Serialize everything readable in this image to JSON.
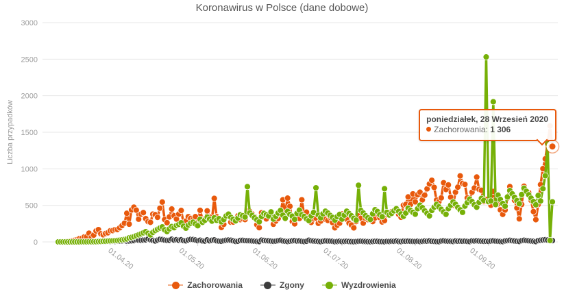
{
  "chart_data": {
    "type": "line",
    "title": "Koronawirus w Polsce (dane dobowe)",
    "ylabel": "Liczba przypadków",
    "ylim": [
      0,
      3000
    ],
    "yticks": [
      0,
      500,
      1000,
      1500,
      2000,
      2500,
      3000
    ],
    "grid": "horizontal",
    "legend_position": "bottom",
    "x_start_date": "2020-03-03",
    "x_interval": "1 day",
    "n_points": 210,
    "xticks": [
      {
        "label": "01.04.20",
        "index": 29
      },
      {
        "label": "01.05.20",
        "index": 59
      },
      {
        "label": "01.06.20",
        "index": 90
      },
      {
        "label": "01.07.20",
        "index": 120
      },
      {
        "label": "01.08.20",
        "index": 151
      },
      {
        "label": "01.09.20",
        "index": 182
      }
    ],
    "series": [
      {
        "name": "Zachorowania",
        "color": "#e8590c",
        "values": [
          1,
          1,
          3,
          5,
          8,
          11,
          16,
          22,
          31,
          46,
          49,
          68,
          70,
          119,
          61,
          93,
          150,
          168,
          111,
          98,
          115,
          125,
          152,
          155,
          168,
          170,
          193,
          224,
          256,
          392,
          243,
          437,
          475,
          435,
          311,
          380,
          401,
          318,
          278,
          268,
          380,
          373,
          336,
          461,
          545,
          306,
          263,
          342,
          450,
          358,
          313,
          381,
          430,
          255,
          285,
          345,
          321,
          305,
          346,
          245,
          432,
          306,
          311,
          425,
          340,
          307,
          595,
          345,
          296,
          198,
          240,
          364,
          351,
          270,
          272,
          292,
          356,
          305,
          316,
          306,
          417,
          416,
          382,
          344,
          235,
          195,
          399,
          336,
          315,
          363,
          396,
          242,
          285,
          320,
          380,
          576,
          395,
          599,
          487,
          280,
          247,
          348,
          321,
          576,
          375,
          407,
          317,
          267,
          314,
          326,
          255,
          285,
          380,
          310,
          294,
          337,
          265,
          193,
          228,
          256,
          382,
          371,
          311,
          257,
          231,
          192,
          279,
          355,
          324,
          257,
          318,
          305,
          336,
          279,
          328,
          380,
          332,
          273,
          292,
          399,
          361,
          412,
          426,
          458,
          376,
          337,
          502,
          512,
          615,
          512,
          657,
          548,
          645,
          680,
          575,
          640,
          726,
          793,
          843,
          746,
          572,
          551,
          602,
          809,
          717,
          780,
          612,
          501,
          680,
          749,
          903,
          800,
          787,
          601,
          571,
          680,
          737,
          887,
          719,
          706,
          552,
          580,
          550,
          502,
          691,
          571,
          519,
          438,
          377,
          436,
          601,
          757,
          649,
          570,
          464,
          316,
          512,
          762,
          691,
          673,
          569,
          415,
          305,
          512,
          784,
          1002,
          1136,
          1350,
          1587,
          1306
        ]
      },
      {
        "name": "Zgony",
        "color": "#3c3c3c",
        "values": [
          0,
          0,
          0,
          0,
          0,
          0,
          0,
          0,
          1,
          1,
          2,
          3,
          4,
          5,
          4,
          2,
          5,
          5,
          2,
          4,
          2,
          8,
          6,
          9,
          7,
          12,
          10,
          14,
          18,
          11,
          12,
          15,
          18,
          30,
          24,
          22,
          25,
          28,
          40,
          29,
          21,
          13,
          24,
          35,
          32,
          25,
          21,
          23,
          36,
          25,
          30,
          23,
          29,
          18,
          15,
          26,
          34,
          32,
          26,
          17,
          23,
          14,
          12,
          27,
          16,
          22,
          27,
          15,
          11,
          9,
          17,
          22,
          25,
          23,
          16,
          7,
          9,
          20,
          21,
          18,
          17,
          16,
          13,
          10,
          7,
          5,
          24,
          20,
          17,
          15,
          12,
          8,
          11,
          17,
          21,
          13,
          9,
          6,
          10,
          15,
          18,
          12,
          14,
          8,
          5,
          9,
          23,
          16,
          12,
          10,
          7,
          4,
          9,
          14,
          12,
          11,
          8,
          3,
          6,
          9,
          5,
          7,
          9,
          6,
          4,
          2,
          5,
          8,
          10,
          7,
          6,
          4,
          3,
          6,
          9,
          8,
          5,
          4,
          2,
          7,
          6,
          9,
          8,
          12,
          6,
          5,
          10,
          9,
          11,
          8,
          7,
          6,
          9,
          5,
          8,
          12,
          10,
          14,
          9,
          7,
          5,
          4,
          12,
          15,
          11,
          9,
          8,
          6,
          13,
          10,
          12,
          9,
          11,
          7,
          5,
          14,
          13,
          16,
          12,
          10,
          8,
          9,
          7,
          12,
          15,
          11,
          9,
          6,
          5,
          14,
          18,
          21,
          17,
          13,
          10,
          6,
          17,
          22,
          19,
          16,
          12,
          8,
          5,
          18,
          23,
          26,
          29,
          25,
          21,
          18
        ]
      },
      {
        "name": "Wyzdrowienia",
        "color": "#76b007",
        "values": [
          0,
          0,
          0,
          0,
          0,
          0,
          0,
          0,
          0,
          0,
          1,
          1,
          1,
          2,
          2,
          3,
          3,
          5,
          6,
          8,
          10,
          12,
          14,
          16,
          18,
          20,
          24,
          28,
          33,
          40,
          55,
          62,
          71,
          85,
          97,
          110,
          125,
          140,
          118,
          96,
          130,
          155,
          172,
          190,
          205,
          166,
          142,
          178,
          210,
          195,
          225,
          240,
          262,
          215,
          188,
          230,
          255,
          270,
          246,
          222,
          310,
          268,
          295,
          340,
          312,
          285,
          330,
          296,
          318,
          275,
          305,
          355,
          380,
          336,
          310,
          288,
          326,
          372,
          358,
          340,
          756,
          398,
          362,
          330,
          302,
          275,
          348,
          390,
          372,
          355,
          410,
          312,
          348,
          395,
          430,
          366,
          322,
          418,
          376,
          352,
          308,
          390,
          435,
          372,
          348,
          316,
          292,
          356,
          402,
          740,
          368,
          330,
          385,
          420,
          395,
          362,
          335,
          298,
          345,
          376,
          312,
          366,
          420,
          388,
          356,
          322,
          298,
          775,
          430,
          396,
          358,
          330,
          306,
          385,
          440,
          416,
          372,
          345,
          728,
          405,
          368,
          390,
          425,
          455,
          418,
          382,
          350,
          395,
          462,
          430,
          405,
          380,
          455,
          502,
          468,
          425,
          390,
          356,
          430,
          476,
          512,
          480,
          445,
          410,
          378,
          455,
          502,
          548,
          515,
          472,
          438,
          405,
          490,
          538,
          586,
          552,
          508,
          475,
          542,
          596,
          568,
          2530,
          550,
          560,
          1917,
          511,
          640,
          580,
          525,
          488,
          615,
          702,
          658,
          610,
          565,
          522,
          648,
          735,
          692,
          645,
          598,
          552,
          508,
          635,
          560,
          728,
          905,
          1343,
          20,
          548
        ]
      }
    ],
    "highlighted_point": {
      "series": "Zachorowania",
      "index": 209,
      "value": 1306
    }
  },
  "tooltip": {
    "date_label": "poniedziałek, 28 Wrzesień 2020",
    "series_label": "Zachorowania:",
    "value_label": "1 306",
    "accent": "#e8590c"
  },
  "ui_colors": {
    "grid": "#e7e7e7",
    "axis_text": "#9e9e9e",
    "title_text": "#565656"
  }
}
